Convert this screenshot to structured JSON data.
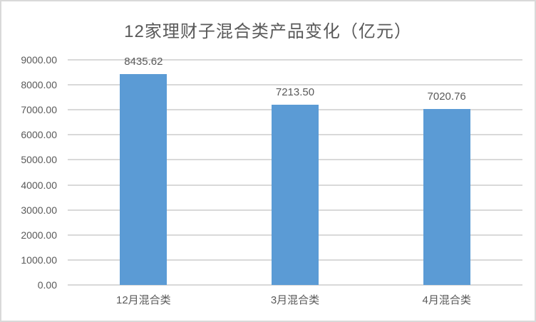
{
  "chart_data": {
    "type": "bar",
    "title": "12家理财子混合类产品变化（亿元）",
    "categories": [
      "12月混合类",
      "3月混合类",
      "4月混合类"
    ],
    "values": [
      8435.62,
      7213.5,
      7020.76
    ],
    "value_labels": [
      "8435.62",
      "7213.50",
      "7020.76"
    ],
    "xlabel": "",
    "ylabel": "",
    "ylim": [
      0,
      9000
    ],
    "ytick_step": 1000,
    "ytick_labels": [
      "0.00",
      "1000.00",
      "2000.00",
      "3000.00",
      "4000.00",
      "5000.00",
      "6000.00",
      "7000.00",
      "8000.00",
      "9000.00"
    ],
    "grid": true,
    "legend_position": "none",
    "bar_color": "#5b9bd5",
    "text_color": "#595959",
    "gridline_color": "#d9d9d9"
  }
}
